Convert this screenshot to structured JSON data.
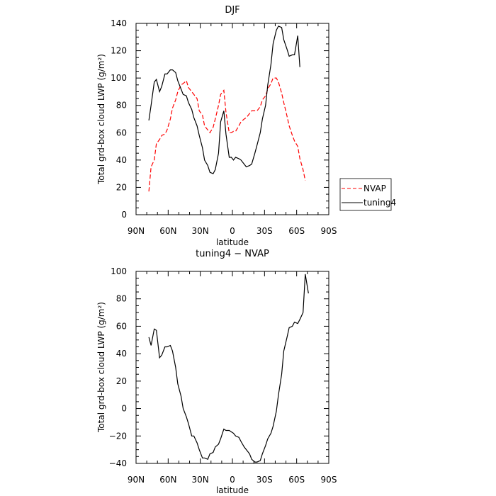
{
  "chart_data": [
    {
      "type": "line",
      "title": "DJF",
      "xlabel": "latitude",
      "ylabel": "Total grd-box cloud LWP (g/m²)",
      "xlim": [
        90,
        -90
      ],
      "ylim": [
        0,
        140
      ],
      "x_ticks": [
        90,
        60,
        30,
        0,
        -30,
        -60,
        -90
      ],
      "x_tick_labels": [
        "90N",
        "60N",
        "30N",
        "0",
        "30S",
        "60S",
        "90S"
      ],
      "y_ticks": [
        0,
        20,
        40,
        60,
        80,
        100,
        120,
        140
      ],
      "legend_position": "outside-right",
      "series": [
        {
          "name": "NVAP",
          "color": "#ff0000",
          "dash": "dashed",
          "points": [
            [
              78,
              17
            ],
            [
              76,
              35
            ],
            [
              73,
              40
            ],
            [
              71,
              52
            ],
            [
              68,
              55
            ],
            [
              66,
              58
            ],
            [
              63,
              59
            ],
            [
              61,
              62
            ],
            [
              58,
              70
            ],
            [
              56,
              78
            ],
            [
              53,
              84
            ],
            [
              51,
              90
            ],
            [
              48,
              95
            ],
            [
              46,
              96
            ],
            [
              43,
              98
            ],
            [
              41,
              93
            ],
            [
              38,
              90
            ],
            [
              36,
              88
            ],
            [
              33,
              85
            ],
            [
              31,
              76
            ],
            [
              28,
              73
            ],
            [
              26,
              65
            ],
            [
              23,
              62
            ],
            [
              21,
              60
            ],
            [
              18,
              64
            ],
            [
              16,
              70
            ],
            [
              13,
              80
            ],
            [
              11,
              88
            ],
            [
              8,
              91
            ],
            [
              6,
              75
            ],
            [
              3,
              60
            ],
            [
              1,
              60
            ],
            [
              -1,
              61
            ],
            [
              -3,
              61
            ],
            [
              -6,
              65
            ],
            [
              -8,
              68
            ],
            [
              -11,
              70
            ],
            [
              -13,
              71
            ],
            [
              -16,
              74
            ],
            [
              -18,
              76
            ],
            [
              -21,
              76
            ],
            [
              -23,
              76
            ],
            [
              -26,
              79
            ],
            [
              -28,
              84
            ],
            [
              -31,
              87
            ],
            [
              -33,
              92
            ],
            [
              -36,
              96
            ],
            [
              -38,
              100
            ],
            [
              -41,
              100
            ],
            [
              -43,
              97
            ],
            [
              -46,
              89
            ],
            [
              -48,
              82
            ],
            [
              -51,
              72
            ],
            [
              -53,
              65
            ],
            [
              -56,
              58
            ],
            [
              -58,
              54
            ],
            [
              -61,
              50
            ],
            [
              -63,
              41
            ],
            [
              -66,
              33
            ],
            [
              -68,
              25
            ]
          ]
        },
        {
          "name": "tuning4",
          "color": "#000000",
          "dash": "solid",
          "points": [
            [
              78,
              69
            ],
            [
              76,
              80
            ],
            [
              73,
              97
            ],
            [
              71,
              99
            ],
            [
              68,
              90
            ],
            [
              66,
              94
            ],
            [
              63,
              103
            ],
            [
              61,
              103
            ],
            [
              58,
              106
            ],
            [
              56,
              106
            ],
            [
              53,
              104
            ],
            [
              51,
              98
            ],
            [
              48,
              92
            ],
            [
              46,
              88
            ],
            [
              43,
              87
            ],
            [
              41,
              82
            ],
            [
              38,
              77
            ],
            [
              36,
              71
            ],
            [
              33,
              65
            ],
            [
              31,
              58
            ],
            [
              28,
              49
            ],
            [
              26,
              40
            ],
            [
              23,
              36
            ],
            [
              21,
              31
            ],
            [
              18,
              30
            ],
            [
              16,
              33
            ],
            [
              13,
              45
            ],
            [
              11,
              68
            ],
            [
              8,
              76
            ],
            [
              6,
              59
            ],
            [
              3,
              42
            ],
            [
              1,
              42
            ],
            [
              -1,
              40
            ],
            [
              -3,
              42
            ],
            [
              -6,
              41
            ],
            [
              -8,
              40
            ],
            [
              -11,
              37
            ],
            [
              -13,
              35
            ],
            [
              -16,
              36
            ],
            [
              -18,
              37
            ],
            [
              -21,
              45
            ],
            [
              -23,
              51
            ],
            [
              -26,
              60
            ],
            [
              -28,
              70
            ],
            [
              -31,
              80
            ],
            [
              -33,
              95
            ],
            [
              -36,
              110
            ],
            [
              -38,
              125
            ],
            [
              -41,
              135
            ],
            [
              -43,
              138
            ],
            [
              -46,
              137
            ],
            [
              -48,
              128
            ],
            [
              -51,
              121
            ],
            [
              -53,
              116
            ],
            [
              -56,
              117
            ],
            [
              -58,
              117
            ],
            [
              -61,
              131
            ],
            [
              -63,
              108
            ]
          ]
        }
      ]
    },
    {
      "type": "line",
      "title": "tuning4 − NVAP",
      "xlabel": "latitude",
      "ylabel": "Total grd-box cloud LWP (g/m²)",
      "xlim": [
        90,
        -90
      ],
      "ylim": [
        -40,
        100
      ],
      "x_ticks": [
        90,
        60,
        30,
        0,
        -30,
        -60,
        -90
      ],
      "x_tick_labels": [
        "90N",
        "60N",
        "30N",
        "0",
        "30S",
        "60S",
        "90S"
      ],
      "y_ticks": [
        -40,
        -20,
        0,
        20,
        40,
        60,
        80,
        100
      ],
      "series": [
        {
          "color": "#000000",
          "dash": "solid",
          "points": [
            [
              78,
              52
            ],
            [
              76,
              46
            ],
            [
              73,
              58
            ],
            [
              71,
              57
            ],
            [
              68,
              37
            ],
            [
              66,
              39
            ],
            [
              63,
              45
            ],
            [
              61,
              45
            ],
            [
              58,
              46
            ],
            [
              56,
              42
            ],
            [
              53,
              30
            ],
            [
              51,
              18
            ],
            [
              48,
              9
            ],
            [
              46,
              0
            ],
            [
              43,
              -6
            ],
            [
              41,
              -11
            ],
            [
              38,
              -20
            ],
            [
              36,
              -20
            ],
            [
              33,
              -25
            ],
            [
              31,
              -30
            ],
            [
              28,
              -36
            ],
            [
              26,
              -36
            ],
            [
              23,
              -37
            ],
            [
              21,
              -33
            ],
            [
              18,
              -32
            ],
            [
              16,
              -28
            ],
            [
              13,
              -26
            ],
            [
              11,
              -22
            ],
            [
              8,
              -15
            ],
            [
              6,
              -16
            ],
            [
              3,
              -16
            ],
            [
              1,
              -17
            ],
            [
              -1,
              -18
            ],
            [
              -3,
              -20
            ],
            [
              -6,
              -21
            ],
            [
              -8,
              -24
            ],
            [
              -11,
              -28
            ],
            [
              -13,
              -30
            ],
            [
              -16,
              -33
            ],
            [
              -18,
              -37
            ],
            [
              -21,
              -39
            ],
            [
              -23,
              -39
            ],
            [
              -26,
              -38
            ],
            [
              -28,
              -33
            ],
            [
              -31,
              -27
            ],
            [
              -33,
              -22
            ],
            [
              -36,
              -18
            ],
            [
              -38,
              -13
            ],
            [
              -41,
              -2
            ],
            [
              -43,
              10
            ],
            [
              -46,
              25
            ],
            [
              -48,
              42
            ],
            [
              -51,
              52
            ],
            [
              -53,
              59
            ],
            [
              -56,
              60
            ],
            [
              -58,
              63
            ],
            [
              -61,
              62
            ],
            [
              -63,
              65
            ],
            [
              -66,
              70
            ],
            [
              -68,
              98
            ],
            [
              -71,
              84
            ]
          ]
        }
      ]
    }
  ]
}
